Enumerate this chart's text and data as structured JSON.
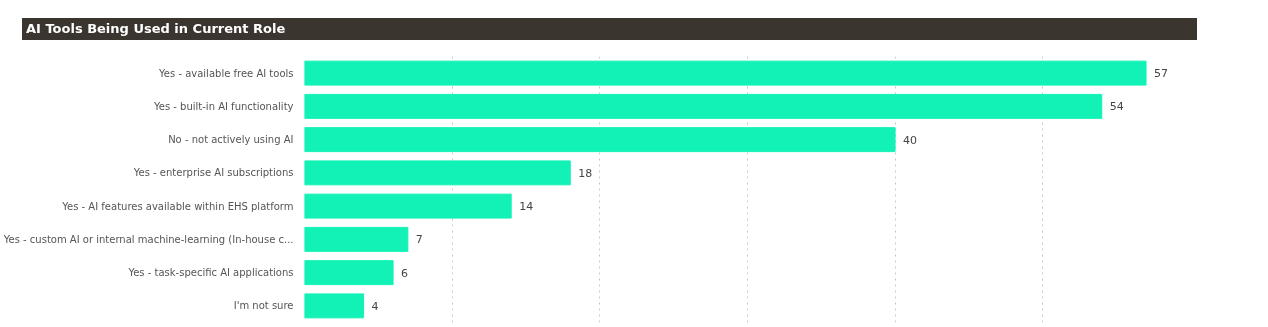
{
  "chart_data": {
    "type": "bar",
    "orientation": "horizontal",
    "title": "AI Tools Being Used in Current Role",
    "categories": [
      "Yes - available free AI tools",
      "Yes - built-in AI functionality",
      "No - not actively using AI",
      "Yes - enterprise AI subscriptions",
      "Yes - AI features available within EHS platform",
      "Yes - custom AI or internal machine-learning (In-house c...",
      "Yes - task-specific AI applications",
      "I'm not sure"
    ],
    "values": [
      57,
      54,
      40,
      18,
      14,
      7,
      6,
      4
    ],
    "color": "#12f2b6",
    "data_labels": true,
    "grid": "x",
    "tick_labels": "y"
  }
}
